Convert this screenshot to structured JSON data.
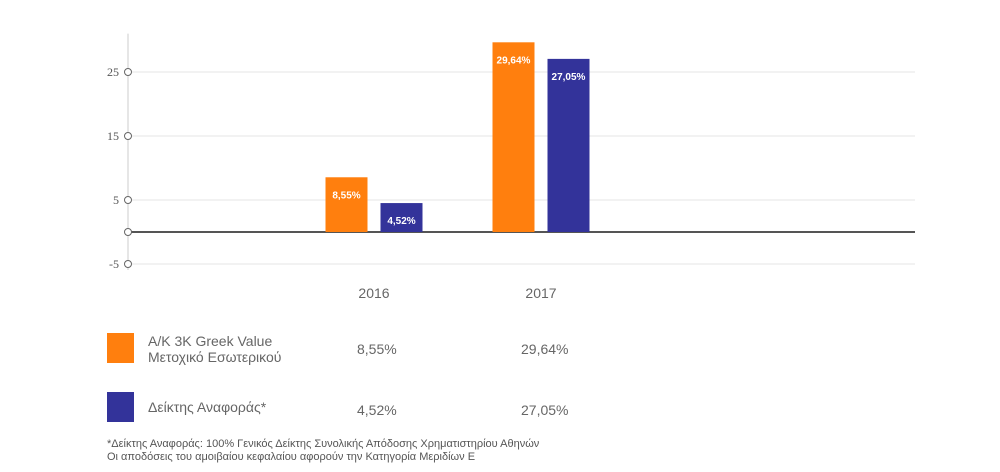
{
  "chart_data": {
    "type": "bar",
    "categories": [
      "2016",
      "2017"
    ],
    "series": [
      {
        "name": "A/K 3K Greek Value Μετοχικό Εσωτερικού",
        "name_lines": [
          "A/K 3K Greek Value",
          "Μετοχικό Εσωτερικού"
        ],
        "values": [
          8.55,
          29.64
        ],
        "labels": [
          "8,55%",
          "29,64%"
        ],
        "color": "#ff7f0e"
      },
      {
        "name": "Δείκτης Αναφοράς*",
        "name_lines": [
          "Δείκτης Αναφοράς*"
        ],
        "values": [
          4.52,
          27.05
        ],
        "labels": [
          "4,52%",
          "27,05%"
        ],
        "color": "#33339a"
      }
    ],
    "yticks": [
      25,
      15,
      5,
      0,
      -5
    ],
    "ytick_labels": [
      "25",
      "15",
      "5",
      "",
      "-5"
    ],
    "ylim": [
      -5,
      31
    ],
    "grid": true,
    "legend": "bottom"
  },
  "footnotes": [
    "*Δείκτης Αναφοράς: 100% Γενικός Δείκτης Συνολικής Απόδοσης Χρηματιστηρίου Αθηνών",
    "Οι αποδόσεις του αμοιβαίου κεφαλαίου αφορούν την Κατηγορία Μεριδίων Ε"
  ]
}
